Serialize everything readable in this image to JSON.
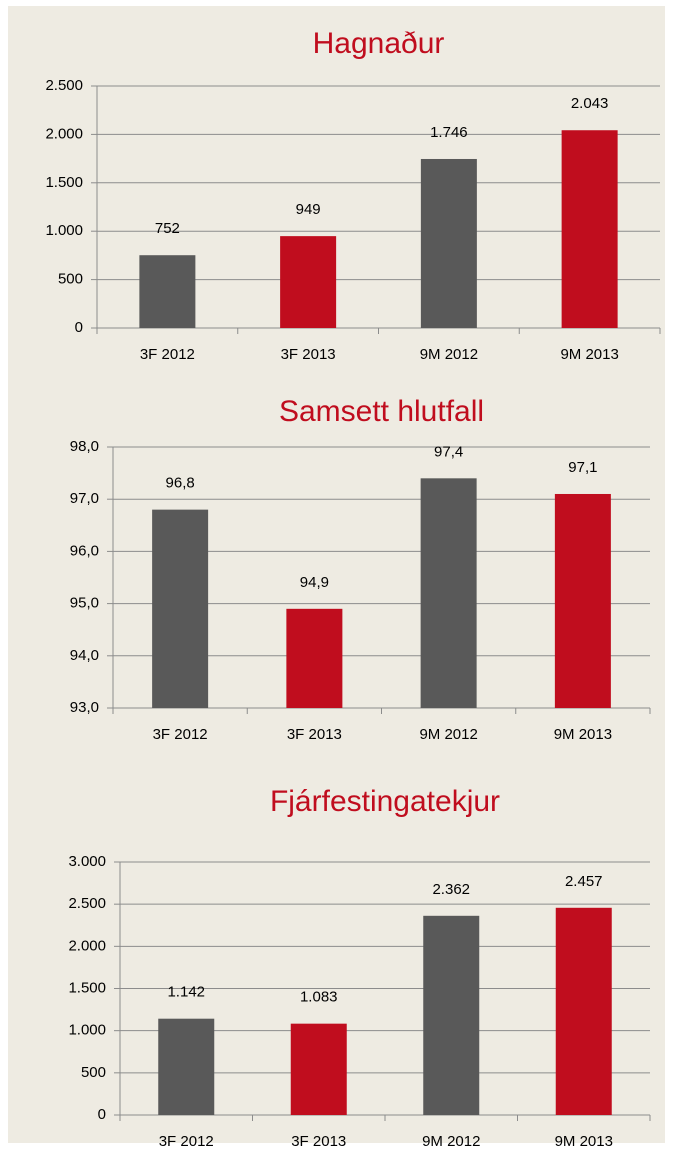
{
  "chart_data": [
    {
      "type": "bar",
      "title": "Hagnaður",
      "categories": [
        "3F 2012",
        "3F 2013",
        "9M 2012",
        "9M 2013"
      ],
      "values": [
        752,
        949,
        1746,
        2043
      ],
      "value_labels": [
        "752",
        "949",
        "1.746",
        "2.043"
      ],
      "colors": [
        "#595959",
        "#c00d1e",
        "#595959",
        "#c00d1e"
      ],
      "ylim": [
        0,
        2500
      ],
      "yticks": [
        0,
        500,
        {
          "value": 1000,
          "label": "1.000"
        },
        {
          "value": 1500,
          "label": "1.500"
        },
        {
          "value": 2000,
          "label": "2.000"
        },
        {
          "value": 2500,
          "label": "2.500"
        }
      ],
      "grid": true
    },
    {
      "type": "bar",
      "title": "Samsett hlutfall",
      "categories": [
        "3F 2012",
        "3F 2013",
        "9M 2012",
        "9M 2013"
      ],
      "values": [
        96.8,
        94.9,
        97.4,
        97.1
      ],
      "value_labels": [
        "96,8",
        "94,9",
        "97,4",
        "97,1"
      ],
      "colors": [
        "#595959",
        "#c00d1e",
        "#595959",
        "#c00d1e"
      ],
      "ylim": [
        93,
        98
      ],
      "yticks": [
        {
          "value": 93,
          "label": "93,0"
        },
        {
          "value": 94,
          "label": "94,0"
        },
        {
          "value": 95,
          "label": "95,0"
        },
        {
          "value": 96,
          "label": "96,0"
        },
        {
          "value": 97,
          "label": "97,0"
        },
        {
          "value": 98,
          "label": "98,0"
        }
      ],
      "grid": true
    },
    {
      "type": "bar",
      "title": "Fjárfestingatekjur",
      "categories": [
        "3F 2012",
        "3F 2013",
        "9M 2012",
        "9M 2013"
      ],
      "values": [
        1142,
        1083,
        2362,
        2457
      ],
      "value_labels": [
        "1.142",
        "1.083",
        "2.362",
        "2.457"
      ],
      "colors": [
        "#595959",
        "#c00d1e",
        "#595959",
        "#c00d1e"
      ],
      "ylim": [
        0,
        3000
      ],
      "yticks": [
        0,
        500,
        {
          "value": 1000,
          "label": "1.000"
        },
        {
          "value": 1500,
          "label": "1.500"
        },
        {
          "value": 2000,
          "label": "2.000"
        },
        {
          "value": 2500,
          "label": "2.500"
        },
        {
          "value": 3000,
          "label": "3.000"
        }
      ],
      "grid": true
    }
  ]
}
